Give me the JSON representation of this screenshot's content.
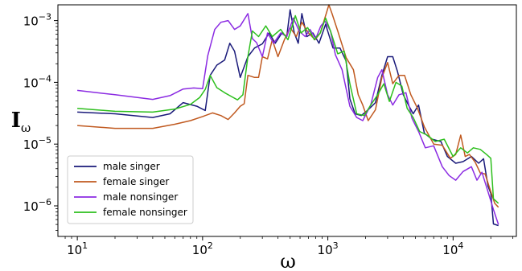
{
  "chart_data": {
    "type": "line",
    "xscale": "log",
    "yscale": "log",
    "xlim": [
      7,
      32000
    ],
    "ylim": [
      3.2e-07,
      0.0018
    ],
    "xlabel": "ω",
    "ylabel_main": "I",
    "ylabel_sub": "ω",
    "x_ticks": [
      {
        "value": 10,
        "base": "10",
        "exp": "1"
      },
      {
        "value": 100,
        "base": "10",
        "exp": "2"
      },
      {
        "value": 1000,
        "base": "10",
        "exp": "3"
      },
      {
        "value": 10000,
        "base": "10",
        "exp": "4"
      }
    ],
    "y_ticks": [
      {
        "value": 1e-06,
        "base": "10",
        "exp": "−6"
      },
      {
        "value": 1e-05,
        "base": "10",
        "exp": "−5"
      },
      {
        "value": 0.0001,
        "base": "10",
        "exp": "−4"
      },
      {
        "value": 0.001,
        "base": "10",
        "exp": "−3"
      }
    ],
    "legend_position": "lower-left",
    "series": [
      {
        "name": "male singer",
        "color": "#1a1a7a",
        "points": [
          [
            10,
            3.3e-05
          ],
          [
            20,
            3.1e-05
          ],
          [
            40,
            2.7e-05
          ],
          [
            55,
            3.1e-05
          ],
          [
            70,
            4.7e-05
          ],
          [
            90,
            4.1e-05
          ],
          [
            105,
            3.5e-05
          ],
          [
            115,
            0.00013
          ],
          [
            130,
            0.00019
          ],
          [
            150,
            0.00023
          ],
          [
            165,
            0.00043
          ],
          [
            180,
            0.00032
          ],
          [
            200,
            0.00012
          ],
          [
            230,
            0.00026
          ],
          [
            260,
            0.00036
          ],
          [
            300,
            0.00042
          ],
          [
            340,
            0.00063
          ],
          [
            380,
            0.00043
          ],
          [
            430,
            0.00063
          ],
          [
            470,
            0.00055
          ],
          [
            500,
            0.0015
          ],
          [
            540,
            0.00063
          ],
          [
            580,
            0.00043
          ],
          [
            620,
            0.0013
          ],
          [
            680,
            0.00055
          ],
          [
            760,
            0.00063
          ],
          [
            850,
            0.00043
          ],
          [
            960,
            0.00087
          ],
          [
            1100,
            0.00036
          ],
          [
            1250,
            0.00036
          ],
          [
            1400,
            0.00022
          ],
          [
            1500,
            5.4e-05
          ],
          [
            1650,
            3.1e-05
          ],
          [
            1850,
            2.9e-05
          ],
          [
            2100,
            3.6e-05
          ],
          [
            2400,
            4.7e-05
          ],
          [
            2700,
            0.00013
          ],
          [
            3000,
            0.00026
          ],
          [
            3300,
            0.00026
          ],
          [
            3600,
            0.00015
          ],
          [
            4000,
            6.3e-05
          ],
          [
            4400,
            4.3e-05
          ],
          [
            4800,
            3.1e-05
          ],
          [
            5300,
            4.3e-05
          ],
          [
            5900,
            1.5e-05
          ],
          [
            6800,
            1.2e-05
          ],
          [
            8000,
            1.1e-05
          ],
          [
            9000,
            6.3e-06
          ],
          [
            10500,
            4.9e-06
          ],
          [
            12000,
            5.2e-06
          ],
          [
            14000,
            6.3e-06
          ],
          [
            16000,
            4.9e-06
          ],
          [
            17500,
            5.8e-06
          ],
          [
            19000,
            2.1e-06
          ],
          [
            20000,
            1.6e-06
          ],
          [
            21000,
            5.1e-07
          ],
          [
            23000,
            4.8e-07
          ]
        ]
      },
      {
        "name": "female singer",
        "color": "#c0591f",
        "points": [
          [
            10,
            2e-05
          ],
          [
            20,
            1.8e-05
          ],
          [
            40,
            1.8e-05
          ],
          [
            60,
            2.1e-05
          ],
          [
            80,
            2.4e-05
          ],
          [
            100,
            2.8e-05
          ],
          [
            120,
            3.2e-05
          ],
          [
            140,
            2.9e-05
          ],
          [
            160,
            2.5e-05
          ],
          [
            180,
            3.2e-05
          ],
          [
            200,
            4.1e-05
          ],
          [
            215,
            4.5e-05
          ],
          [
            230,
            0.00013
          ],
          [
            260,
            0.00012
          ],
          [
            280,
            0.00012
          ],
          [
            300,
            0.00026
          ],
          [
            330,
            0.00024
          ],
          [
            360,
            0.00049
          ],
          [
            400,
            0.00026
          ],
          [
            450,
            0.00049
          ],
          [
            500,
            0.00077
          ],
          [
            560,
            0.00055
          ],
          [
            620,
            0.00094
          ],
          [
            700,
            0.00063
          ],
          [
            790,
            0.00049
          ],
          [
            870,
            0.00063
          ],
          [
            960,
            0.0012
          ],
          [
            1020,
            0.0018
          ],
          [
            1080,
            0.0013
          ],
          [
            1200,
            0.00068
          ],
          [
            1400,
            0.00025
          ],
          [
            1600,
            0.00016
          ],
          [
            1750,
            6.3e-05
          ],
          [
            1900,
            4.3e-05
          ],
          [
            2100,
            2.4e-05
          ],
          [
            2400,
            3.6e-05
          ],
          [
            2700,
            0.00012
          ],
          [
            3000,
            0.00021
          ],
          [
            3300,
            9.5e-05
          ],
          [
            3700,
            0.00013
          ],
          [
            4100,
            0.00013
          ],
          [
            4600,
            6.3e-05
          ],
          [
            5200,
            3.8e-05
          ],
          [
            5900,
            1.9e-05
          ],
          [
            7000,
            1e-05
          ],
          [
            8200,
            9.6e-06
          ],
          [
            9500,
            5.9e-06
          ],
          [
            10500,
            6.8e-06
          ],
          [
            11500,
            1.4e-05
          ],
          [
            12500,
            6.3e-06
          ],
          [
            13500,
            6.8e-06
          ],
          [
            15000,
            5.1e-06
          ],
          [
            16500,
            3.4e-06
          ],
          [
            18000,
            3.3e-06
          ],
          [
            20000,
            1.7e-06
          ],
          [
            21500,
            1.1e-06
          ],
          [
            23000,
            9.5e-07
          ]
        ]
      },
      {
        "name": "male nonsinger",
        "color": "#8b2be2",
        "points": [
          [
            10,
            7.4e-05
          ],
          [
            20,
            6.3e-05
          ],
          [
            40,
            5.3e-05
          ],
          [
            55,
            6.1e-05
          ],
          [
            70,
            7.8e-05
          ],
          [
            85,
            8.1e-05
          ],
          [
            100,
            7.9e-05
          ],
          [
            110,
            0.00027
          ],
          [
            125,
            0.00072
          ],
          [
            140,
            0.00094
          ],
          [
            160,
            0.001
          ],
          [
            180,
            0.00072
          ],
          [
            200,
            0.00082
          ],
          [
            230,
            0.0013
          ],
          [
            250,
            0.00051
          ],
          [
            270,
            0.00044
          ],
          [
            300,
            0.00026
          ],
          [
            330,
            0.00063
          ],
          [
            370,
            0.00043
          ],
          [
            420,
            0.00063
          ],
          [
            470,
            0.00055
          ],
          [
            530,
            0.0011
          ],
          [
            590,
            0.00068
          ],
          [
            660,
            0.00055
          ],
          [
            720,
            0.00072
          ],
          [
            800,
            0.00051
          ],
          [
            880,
            0.00082
          ],
          [
            950,
            0.00098
          ],
          [
            1050,
            0.00068
          ],
          [
            1150,
            0.00028
          ],
          [
            1300,
            0.00016
          ],
          [
            1500,
            4.1e-05
          ],
          [
            1700,
            2.7e-05
          ],
          [
            1900,
            2.4e-05
          ],
          [
            2200,
            4.3e-05
          ],
          [
            2500,
            0.00012
          ],
          [
            2700,
            0.00016
          ],
          [
            3000,
            6.3e-05
          ],
          [
            3300,
            4.3e-05
          ],
          [
            3700,
            6.3e-05
          ],
          [
            4200,
            6.8e-05
          ],
          [
            4700,
            2.6e-05
          ],
          [
            5300,
            1.6e-05
          ],
          [
            6000,
            8.7e-06
          ],
          [
            7000,
            9.4e-06
          ],
          [
            8200,
            4.3e-06
          ],
          [
            9300,
            3.1e-06
          ],
          [
            10500,
            2.6e-06
          ],
          [
            12000,
            3.6e-06
          ],
          [
            14000,
            4.3e-06
          ],
          [
            15500,
            2.6e-06
          ],
          [
            17000,
            3.5e-06
          ],
          [
            19000,
            1.7e-06
          ],
          [
            21000,
            8.7e-07
          ],
          [
            23000,
            5e-07
          ]
        ]
      },
      {
        "name": "female nonsinger",
        "color": "#2dbf1d",
        "points": [
          [
            10,
            3.8e-05
          ],
          [
            20,
            3.4e-05
          ],
          [
            40,
            3.3e-05
          ],
          [
            60,
            3.7e-05
          ],
          [
            80,
            4.4e-05
          ],
          [
            95,
            5.7e-05
          ],
          [
            105,
            7.7e-05
          ],
          [
            115,
            0.00013
          ],
          [
            130,
            8.2e-05
          ],
          [
            150,
            6.8e-05
          ],
          [
            170,
            5.9e-05
          ],
          [
            190,
            5.2e-05
          ],
          [
            210,
            6.3e-05
          ],
          [
            230,
            0.00026
          ],
          [
            250,
            0.00068
          ],
          [
            280,
            0.00055
          ],
          [
            320,
            0.00082
          ],
          [
            360,
            0.00055
          ],
          [
            420,
            0.00072
          ],
          [
            480,
            0.00049
          ],
          [
            550,
            0.0012
          ],
          [
            610,
            0.00063
          ],
          [
            690,
            0.00077
          ],
          [
            780,
            0.00049
          ],
          [
            870,
            0.00063
          ],
          [
            960,
            0.0011
          ],
          [
            1050,
            0.00068
          ],
          [
            1200,
            0.00029
          ],
          [
            1350,
            0.00032
          ],
          [
            1500,
            9.5e-05
          ],
          [
            1700,
            3.1e-05
          ],
          [
            1950,
            2.9e-05
          ],
          [
            2200,
            4.3e-05
          ],
          [
            2500,
            6.3e-05
          ],
          [
            2800,
            9.5e-05
          ],
          [
            3100,
            4.9e-05
          ],
          [
            3500,
            0.0001
          ],
          [
            3900,
            8.7e-05
          ],
          [
            4300,
            3.8e-05
          ],
          [
            4800,
            2.7e-05
          ],
          [
            5400,
            1.6e-05
          ],
          [
            6200,
            1.4e-05
          ],
          [
            7200,
            1.1e-05
          ],
          [
            8500,
            1.2e-05
          ],
          [
            10000,
            6.3e-06
          ],
          [
            11500,
            8.7e-06
          ],
          [
            13000,
            7.2e-06
          ],
          [
            14500,
            8.7e-06
          ],
          [
            16500,
            8.2e-06
          ],
          [
            18500,
            6.8e-06
          ],
          [
            20000,
            5.9e-06
          ],
          [
            21000,
            1.3e-06
          ],
          [
            23000,
            1.1e-06
          ]
        ]
      }
    ]
  }
}
